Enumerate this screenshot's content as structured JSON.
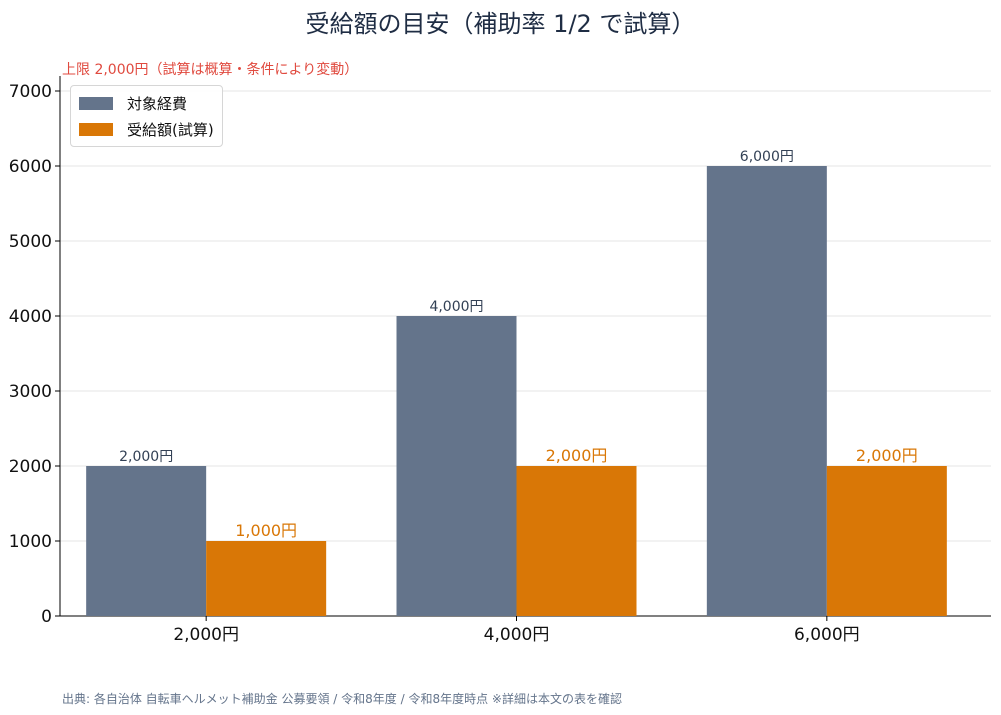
{
  "chart_data": {
    "type": "bar",
    "title": "受給額の目安（補助率 1/2 で試算）",
    "annotation": "上限 2,000円（試算は概算・条件により変動）",
    "source": "出典: 各自治体 自転車ヘルメット補助金 公募要領 / 令和8年度 / 令和8年度時点 ※詳細は本文の表を確認",
    "categories": [
      "2,000円",
      "4,000円",
      "6,000円"
    ],
    "series": [
      {
        "name": "対象経費",
        "values": [
          2000,
          4000,
          6000
        ],
        "labels": [
          "2,000円",
          "4,000円",
          "6,000円"
        ],
        "color": "#64748b"
      },
      {
        "name": "受給額(試算)",
        "values": [
          1000,
          2000,
          2000
        ],
        "labels": [
          "1,000円",
          "2,000円",
          "2,000円"
        ],
        "color": "#d97706"
      }
    ],
    "yticks": [
      0,
      1000,
      2000,
      3000,
      4000,
      5000,
      6000,
      7000
    ],
    "ylim": [
      0,
      7200
    ],
    "xlabel": "",
    "ylabel": "",
    "grid": "y",
    "legend_position": "top-left",
    "colors": {
      "cost": "#64748b",
      "grant": "#d97706",
      "annotation": "#e04a3f",
      "grid": "#e6e6e6"
    }
  }
}
